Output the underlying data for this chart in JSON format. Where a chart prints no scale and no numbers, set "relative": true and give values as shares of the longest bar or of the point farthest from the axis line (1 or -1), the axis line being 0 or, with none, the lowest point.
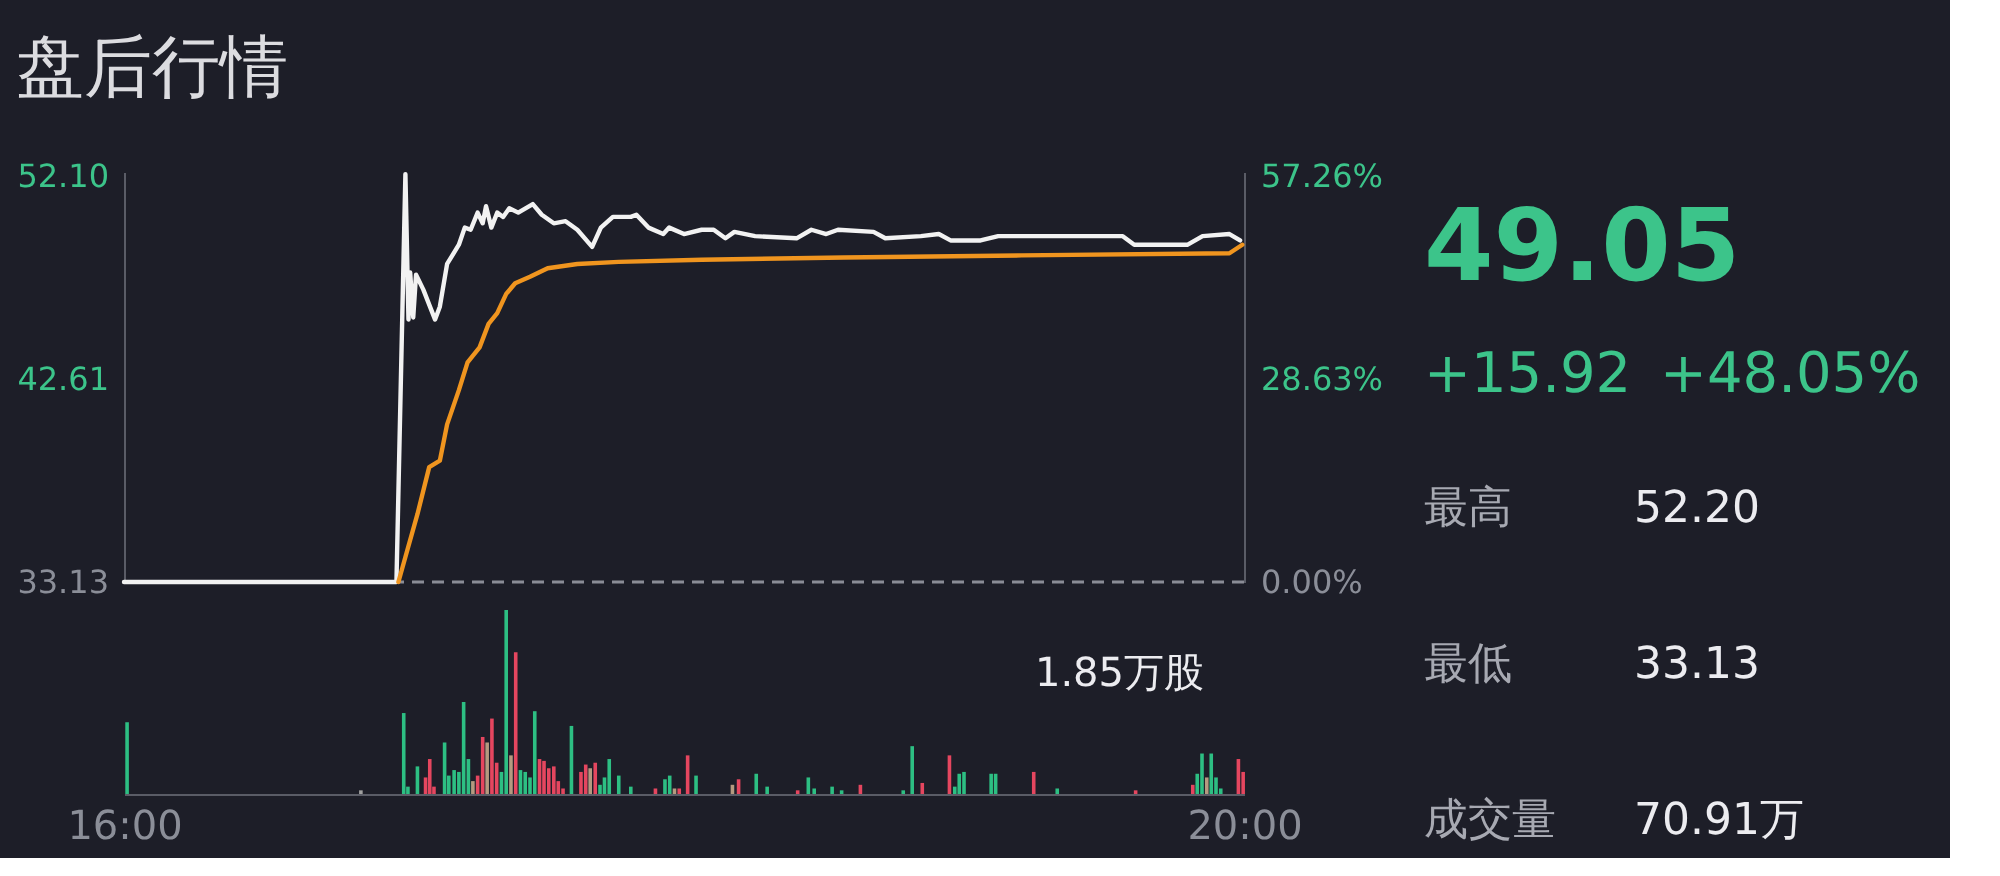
{
  "chart_data": [
    {
      "type": "line",
      "title": "盘后行情",
      "xlim": [
        16,
        20
      ],
      "ylim": [
        33.13,
        52.3
      ],
      "yticks": [
        33.13,
        42.61,
        {
          "value": 52.1,
          "label": "52.10"
        }
      ],
      "y2lim": [
        0,
        57.86
      ],
      "y2ticks": [
        {
          "value": 0,
          "label": "0.00%"
        },
        {
          "value": 28.63,
          "label": "28.63%"
        },
        {
          "value": 57.26,
          "label": "57.26%"
        }
      ],
      "tick_labels": "y",
      "line_style": "solid",
      "ref_lines": [
        {
          "axis": "y",
          "value": 33.13,
          "color": "#8a8c96",
          "line_style": "dashed"
        }
      ],
      "series": [
        {
          "color": "#f2f2f2",
          "x": [
            16.0,
            16.973,
            17.005,
            17.016,
            17.022,
            17.033,
            17.043,
            17.069,
            17.111,
            17.128,
            17.154,
            17.196,
            17.217,
            17.238,
            17.263,
            17.281,
            17.293,
            17.312,
            17.333,
            17.354,
            17.376,
            17.408,
            17.46,
            17.492,
            17.535,
            17.577,
            17.619,
            17.672,
            17.703,
            17.746,
            17.81,
            17.83,
            17.873,
            17.926,
            17.947,
            18.0,
            18.063,
            18.106,
            18.148,
            18.18,
            18.254,
            18.402,
            18.455,
            18.508,
            18.55,
            18.677,
            18.719,
            18.846,
            18.91,
            18.952,
            19.059,
            19.122,
            19.312,
            19.567,
            19.608,
            19.799,
            19.852,
            19.948,
            19.986
          ],
          "values": [
            33.13,
            33.13,
            52.2,
            45.4,
            47.6,
            45.5,
            47.5,
            46.8,
            45.4,
            46.0,
            48.0,
            48.9,
            49.7,
            49.6,
            50.4,
            49.9,
            50.7,
            49.7,
            50.4,
            50.2,
            50.6,
            50.4,
            50.8,
            50.3,
            49.9,
            50.0,
            49.6,
            48.8,
            49.7,
            50.2,
            50.2,
            50.3,
            49.7,
            49.4,
            49.7,
            49.4,
            49.6,
            49.6,
            49.2,
            49.5,
            49.3,
            49.2,
            49.6,
            49.4,
            49.6,
            49.5,
            49.2,
            49.3,
            49.4,
            49.1,
            49.1,
            49.3,
            49.3,
            49.3,
            48.9,
            48.9,
            49.3,
            49.4,
            49.1
          ]
        },
        {
          "color": "#f0951f",
          "x": [
            16.98,
            17.005,
            17.048,
            17.09,
            17.128,
            17.154,
            17.196,
            17.227,
            17.27,
            17.302,
            17.333,
            17.365,
            17.397,
            17.45,
            17.513,
            17.619,
            17.767,
            18.063,
            18.571,
            19.206,
            19.948,
            19.994
          ],
          "values": [
            33.13,
            34.3,
            36.3,
            38.5,
            38.8,
            40.5,
            42.1,
            43.4,
            44.1,
            45.2,
            45.7,
            46.6,
            47.1,
            47.4,
            47.8,
            48.0,
            48.1,
            48.2,
            48.3,
            48.4,
            48.5,
            48.9
          ]
        }
      ]
    },
    {
      "type": "bar",
      "relative": true,
      "xlim": [
        16,
        20
      ],
      "xticks": [
        {
          "value": 16,
          "label": "16:00"
        },
        {
          "value": 20,
          "label": "20:00"
        }
      ],
      "tick_labels": "x",
      "annotations": [
        "1.85万股"
      ],
      "x": [
        16.011,
        16.846,
        16.999,
        17.014,
        17.048,
        17.077,
        17.092,
        17.107,
        17.145,
        17.16,
        17.179,
        17.196,
        17.213,
        17.23,
        17.246,
        17.263,
        17.281,
        17.297,
        17.314,
        17.331,
        17.348,
        17.365,
        17.382,
        17.399,
        17.416,
        17.433,
        17.45,
        17.467,
        17.484,
        17.5,
        17.517,
        17.535,
        17.551,
        17.568,
        17.598,
        17.632,
        17.649,
        17.665,
        17.683,
        17.7,
        17.716,
        17.733,
        17.767,
        17.81,
        17.898,
        17.932,
        17.949,
        17.966,
        17.983,
        18.013,
        18.043,
        18.173,
        18.195,
        18.258,
        18.297,
        18.406,
        18.444,
        18.465,
        18.529,
        18.563,
        18.63,
        18.783,
        18.815,
        18.851,
        18.948,
        18.967,
        18.983,
        19.0,
        19.097,
        19.113,
        19.249,
        19.333,
        19.613,
        19.817,
        19.833,
        19.85,
        19.867,
        19.883,
        19.9,
        19.917,
        19.98,
        19.997
      ],
      "values": [
        0.39,
        0.02,
        0.44,
        0.04,
        0.15,
        0.09,
        0.19,
        0.04,
        0.28,
        0.1,
        0.13,
        0.12,
        0.5,
        0.19,
        0.07,
        0.1,
        0.31,
        0.28,
        0.41,
        0.17,
        0.12,
        1,
        0.21,
        0.77,
        0.13,
        0.12,
        0.09,
        0.45,
        0.19,
        0.18,
        0.14,
        0.15,
        0.07,
        0.03,
        0.37,
        0.12,
        0.16,
        0.14,
        0.17,
        0.05,
        0.09,
        0.19,
        0.1,
        0.04,
        0.03,
        0.08,
        0.1,
        0.03,
        0.03,
        0.21,
        0.1,
        0.05,
        0.08,
        0.11,
        0.04,
        0.02,
        0.09,
        0.03,
        0.04,
        0.02,
        0.05,
        0.02,
        0.26,
        0.06,
        0.21,
        0.04,
        0.11,
        0.12,
        0.11,
        0.11,
        0.12,
        0.03,
        0.02,
        0.05,
        0.11,
        0.22,
        0.09,
        0.22,
        0.09,
        0.03,
        0.19,
        0.12
      ],
      "colors": [
        "#2dbf83",
        "#a0a0a0",
        "#2dbf83",
        "#2dbf83",
        "#2dbf83",
        "#e5465f",
        "#e5465f",
        "#e5465f",
        "#2dbf83",
        "#2dbf83",
        "#2dbf83",
        "#2dbf83",
        "#2dbf83",
        "#2dbf83",
        "#b59a80",
        "#e5465f",
        "#e5465f",
        "#b59a80",
        "#e5465f",
        "#e5465f",
        "#2dbf83",
        "#2dbf83",
        "#b59a80",
        "#e5465f",
        "#2dbf83",
        "#2dbf83",
        "#2dbf83",
        "#2dbf83",
        "#e5465f",
        "#e5465f",
        "#e5465f",
        "#e5465f",
        "#e5465f",
        "#e5465f",
        "#2dbf83",
        "#e5465f",
        "#e5465f",
        "#b59a80",
        "#e5465f",
        "#2dbf83",
        "#2dbf83",
        "#2dbf83",
        "#2dbf83",
        "#2dbf83",
        "#e5465f",
        "#2dbf83",
        "#2dbf83",
        "#b59a80",
        "#e5465f",
        "#e5465f",
        "#2dbf83",
        "#b59a80",
        "#e5465f",
        "#2dbf83",
        "#2dbf83",
        "#e5465f",
        "#2dbf83",
        "#2dbf83",
        "#2dbf83",
        "#2dbf83",
        "#e5465f",
        "#2dbf83",
        "#2dbf83",
        "#e5465f",
        "#e5465f",
        "#2dbf83",
        "#2dbf83",
        "#2dbf83",
        "#2dbf83",
        "#2dbf83",
        "#e5465f",
        "#2dbf83",
        "#e5465f",
        "#e5465f",
        "#2dbf83",
        "#2dbf83",
        "#b59a80",
        "#2dbf83",
        "#2dbf83",
        "#2dbf83",
        "#e5465f",
        "#e5465f"
      ]
    },
    {
      "type": "other",
      "annotations": [
        "49.05",
        "+15.92",
        "+48.05%",
        "最高",
        "52.20",
        "最低",
        "33.13",
        "成交量",
        "70.91万"
      ]
    }
  ]
}
